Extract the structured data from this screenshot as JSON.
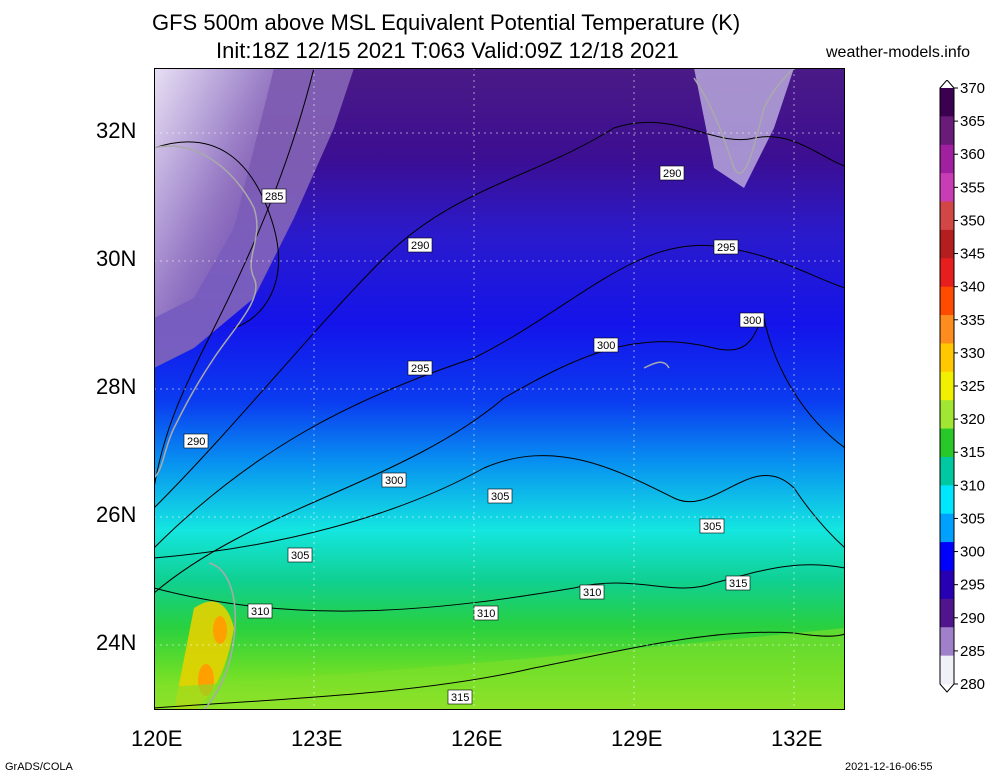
{
  "header": {
    "title_line1": "GFS 500m above MSL Equivalent Potential Temperature (K)",
    "title_line2": "Init:18Z 12/15 2021 T:063 Valid:09Z 12/18 2021",
    "site": "weather-models.info"
  },
  "axes": {
    "y_ticks": [
      "32N",
      "30N",
      "28N",
      "26N",
      "24N"
    ],
    "x_ticks": [
      "120E",
      "123E",
      "126E",
      "129E",
      "132E"
    ]
  },
  "colorbar": {
    "labels": [
      "370",
      "365",
      "360",
      "355",
      "350",
      "345",
      "340",
      "335",
      "330",
      "325",
      "320",
      "315",
      "310",
      "305",
      "300",
      "295",
      "290",
      "285",
      "280"
    ],
    "colors": [
      "#3c0050",
      "#6a1a78",
      "#a020a0",
      "#c83cb4",
      "#d24646",
      "#b41e1e",
      "#e61e1e",
      "#ff4b00",
      "#ff8c1e",
      "#ffc800",
      "#f0f000",
      "#a0e632",
      "#28c828",
      "#00c8a0",
      "#00e6ff",
      "#00a0ff",
      "#0000ff",
      "#2800b4",
      "#50148c",
      "#a080c8",
      "#f0f0f8"
    ]
  },
  "contour_labels": [
    "285",
    "290",
    "290",
    "290",
    "295",
    "295",
    "300",
    "300",
    "300",
    "305",
    "305",
    "305",
    "310",
    "310",
    "310",
    "315",
    "315"
  ],
  "footer": {
    "left": "GrADS/COLA",
    "right": "2021-12-16-06:55"
  }
}
